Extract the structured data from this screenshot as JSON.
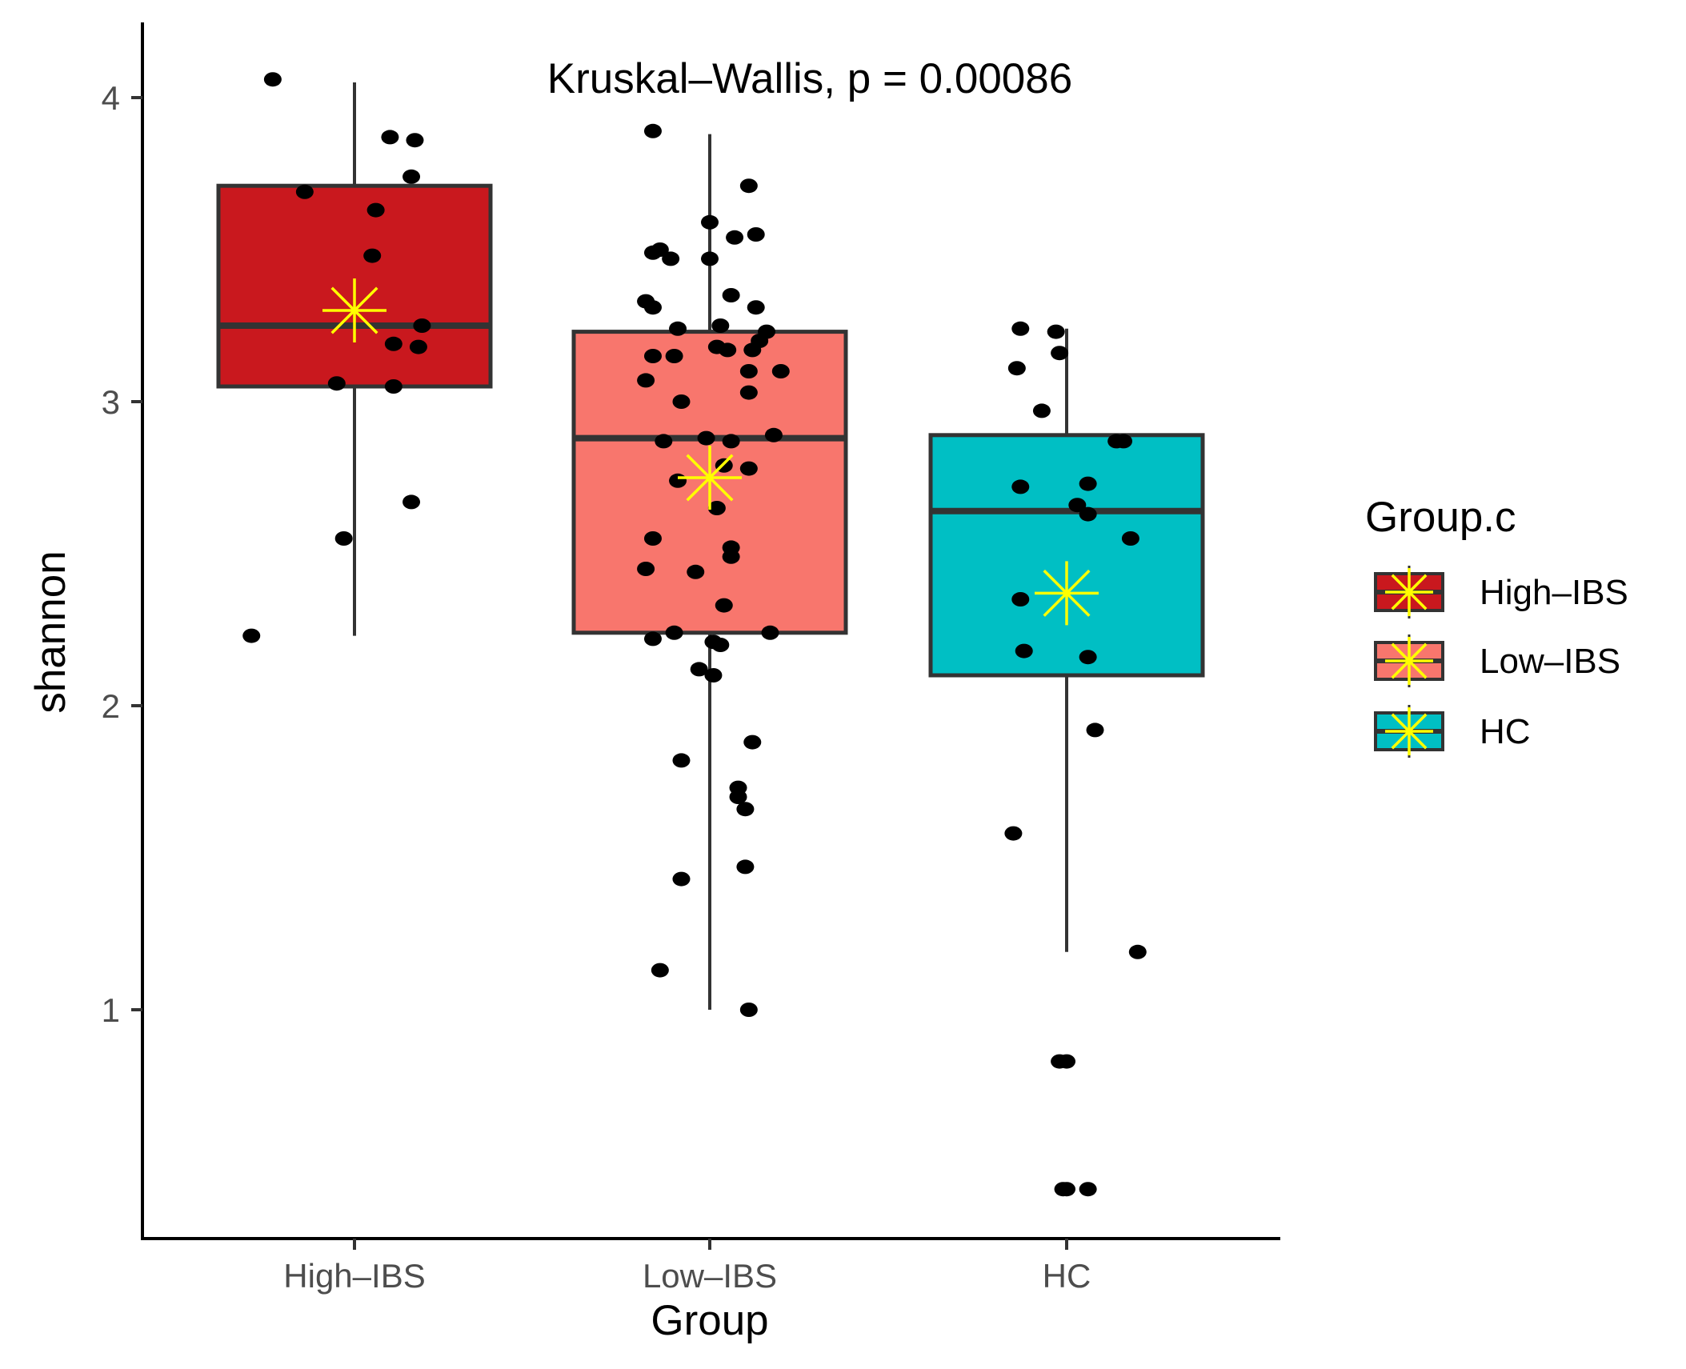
{
  "chart_data": {
    "type": "boxplot",
    "title": "",
    "annotation": "Kruskal–Wallis, p = 0.00086",
    "xlabel": "Group",
    "ylabel": "shannon",
    "ylim": [
      0.28,
      4.28
    ],
    "yticks": [
      1,
      2,
      3,
      4
    ],
    "categories": [
      "High–IBS",
      "Low–IBS",
      "HC"
    ],
    "legend": {
      "title": "Group.c",
      "position": "right",
      "items": [
        "High–IBS",
        "Low–IBS",
        "HC"
      ]
    },
    "colors": {
      "High-IBS": "#c9181e",
      "Low-IBS": "#f8766d",
      "HC": "#00bfc4",
      "mean_marker": "#ffff00",
      "points": "#000000",
      "box_outline": "#333333"
    },
    "series": [
      {
        "name": "High–IBS",
        "box": {
          "q1": 3.05,
          "median": 3.25,
          "q3": 3.71,
          "whisker_low": 2.23,
          "whisker_high": 4.05
        },
        "mean": 3.3,
        "points": [
          [
            -0.23,
            4.06
          ],
          [
            0.1,
            3.87
          ],
          [
            0.17,
            3.86
          ],
          [
            -0.14,
            3.69
          ],
          [
            0.16,
            3.74
          ],
          [
            0.06,
            3.63
          ],
          [
            0.05,
            3.48
          ],
          [
            0.19,
            3.25
          ],
          [
            0.11,
            3.19
          ],
          [
            0.18,
            3.18
          ],
          [
            -0.05,
            3.06
          ],
          [
            0.11,
            3.05
          ],
          [
            0.16,
            2.67
          ],
          [
            -0.03,
            2.55
          ],
          [
            -0.29,
            2.23
          ]
        ]
      },
      {
        "name": "Low–IBS",
        "box": {
          "q1": 2.24,
          "median": 2.88,
          "q3": 3.23,
          "whisker_low": 1.0,
          "whisker_high": 3.88
        },
        "mean": 2.75,
        "points": [
          [
            -0.16,
            3.89
          ],
          [
            0.11,
            3.71
          ],
          [
            -0.14,
            3.5
          ],
          [
            -0.16,
            3.49
          ],
          [
            -0.11,
            3.47
          ],
          [
            0.0,
            3.59
          ],
          [
            0.07,
            3.54
          ],
          [
            0.13,
            3.55
          ],
          [
            0.0,
            3.47
          ],
          [
            -0.18,
            3.33
          ],
          [
            -0.16,
            3.31
          ],
          [
            0.06,
            3.35
          ],
          [
            0.13,
            3.31
          ],
          [
            -0.09,
            3.24
          ],
          [
            0.03,
            3.25
          ],
          [
            0.16,
            3.23
          ],
          [
            0.14,
            3.2
          ],
          [
            0.12,
            3.17
          ],
          [
            0.02,
            3.18
          ],
          [
            0.05,
            3.17
          ],
          [
            -0.16,
            3.15
          ],
          [
            -0.1,
            3.15
          ],
          [
            0.11,
            3.1
          ],
          [
            0.2,
            3.1
          ],
          [
            -0.18,
            3.07
          ],
          [
            0.11,
            3.03
          ],
          [
            -0.08,
            3.0
          ],
          [
            -0.13,
            2.87
          ],
          [
            -0.01,
            2.88
          ],
          [
            0.06,
            2.87
          ],
          [
            0.18,
            2.89
          ],
          [
            0.04,
            2.79
          ],
          [
            0.11,
            2.78
          ],
          [
            -0.09,
            2.74
          ],
          [
            0.02,
            2.65
          ],
          [
            -0.16,
            2.55
          ],
          [
            0.06,
            2.52
          ],
          [
            0.06,
            2.49
          ],
          [
            -0.18,
            2.45
          ],
          [
            -0.04,
            2.44
          ],
          [
            0.04,
            2.33
          ],
          [
            -0.16,
            2.22
          ],
          [
            -0.1,
            2.24
          ],
          [
            0.17,
            2.24
          ],
          [
            0.01,
            2.21
          ],
          [
            0.03,
            2.2
          ],
          [
            -0.03,
            2.12
          ],
          [
            0.01,
            2.1
          ],
          [
            0.12,
            1.88
          ],
          [
            -0.08,
            1.82
          ],
          [
            0.08,
            1.73
          ],
          [
            0.08,
            1.7
          ],
          [
            0.1,
            1.66
          ],
          [
            0.1,
            1.47
          ],
          [
            -0.08,
            1.43
          ],
          [
            -0.14,
            1.13
          ],
          [
            0.11,
            1.0
          ]
        ]
      },
      {
        "name": "HC",
        "box": {
          "q1": 2.1,
          "median": 2.64,
          "q3": 2.89,
          "whisker_low": 1.19,
          "whisker_high": 3.24
        },
        "mean": 2.37,
        "points": [
          [
            -0.13,
            3.24
          ],
          [
            -0.03,
            3.23
          ],
          [
            -0.02,
            3.16
          ],
          [
            -0.14,
            3.11
          ],
          [
            -0.07,
            2.97
          ],
          [
            0.14,
            2.87
          ],
          [
            0.16,
            2.87
          ],
          [
            -0.13,
            2.72
          ],
          [
            0.06,
            2.73
          ],
          [
            0.03,
            2.66
          ],
          [
            0.06,
            2.63
          ],
          [
            0.18,
            2.55
          ],
          [
            -0.13,
            2.35
          ],
          [
            -0.12,
            2.18
          ],
          [
            0.06,
            2.16
          ],
          [
            0.08,
            1.92
          ],
          [
            -0.15,
            1.58
          ],
          [
            0.2,
            1.19
          ],
          [
            -0.02,
            0.83
          ],
          [
            0.0,
            0.83
          ],
          [
            -0.01,
            0.41
          ],
          [
            0.0,
            0.41
          ],
          [
            0.06,
            0.41
          ]
        ]
      }
    ]
  }
}
